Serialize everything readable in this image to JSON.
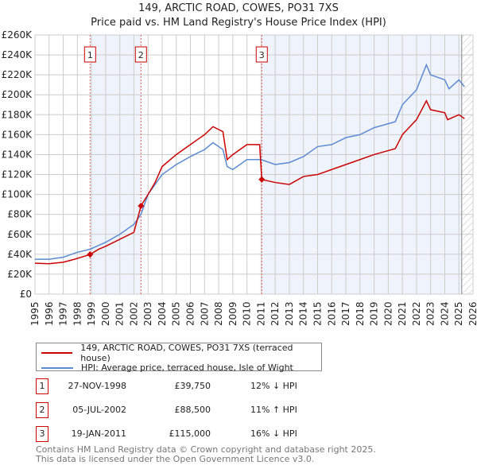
{
  "chart_data": {
    "type": "line",
    "title": "149, ARCTIC ROAD, COWES, PO31 7XS",
    "subtitle": "Price paid vs. HM Land Registry's House Price Index (HPI)",
    "xlim": [
      1995,
      2026
    ],
    "ylim": [
      0,
      260000
    ],
    "yticks": [
      "£0",
      "£20K",
      "£40K",
      "£60K",
      "£80K",
      "£100K",
      "£120K",
      "£140K",
      "£160K",
      "£180K",
      "£200K",
      "£220K",
      "£240K",
      "£260K"
    ],
    "xticks": [
      "1995",
      "1996",
      "1997",
      "1998",
      "1999",
      "2000",
      "2001",
      "2002",
      "2003",
      "2004",
      "2005",
      "2006",
      "2007",
      "2008",
      "2009",
      "2010",
      "2011",
      "2012",
      "2013",
      "2014",
      "2015",
      "2016",
      "2017",
      "2018",
      "2019",
      "2020",
      "2021",
      "2022",
      "2023",
      "2024",
      "2025",
      "2026"
    ],
    "grid": true,
    "series": [
      {
        "name": "149, ARCTIC ROAD, COWES, PO31 7XS (terraced house)",
        "color": "#cc0000",
        "x": [
          1995,
          1996,
          1997,
          1997.8,
          1998.9,
          1999.5,
          2000,
          2001,
          2002,
          2002.5,
          2003,
          2003.5,
          2004,
          2005,
          2006,
          2007,
          2007.6,
          2008.3,
          2008.6,
          2009,
          2010,
          2010.9,
          2011.05,
          2012,
          2013,
          2014,
          2015,
          2016,
          2017,
          2018,
          2019,
          2020,
          2020.5,
          2021,
          2022,
          2022.7,
          2023,
          2024,
          2024.2,
          2025,
          2025.4
        ],
        "y": [
          31000,
          30500,
          32000,
          35000,
          39750,
          45000,
          48000,
          55000,
          62000,
          88500,
          100000,
          112000,
          128000,
          140000,
          150000,
          160000,
          168000,
          163000,
          135000,
          140000,
          150000,
          150000,
          115000,
          112000,
          110000,
          118000,
          120000,
          125000,
          130000,
          135000,
          140000,
          144000,
          146000,
          160000,
          175000,
          194000,
          185000,
          182000,
          175000,
          180000,
          176000
        ]
      },
      {
        "name": "HPI: Average price, terraced house, Isle of Wight",
        "color": "#5b8bd0",
        "x": [
          1995,
          1996,
          1997,
          1998,
          1998.9,
          2000,
          2001,
          2002,
          2002.5,
          2003,
          2004,
          2005,
          2006,
          2007,
          2007.6,
          2008.3,
          2008.6,
          2009,
          2010,
          2011,
          2012,
          2013,
          2014,
          2015,
          2016,
          2017,
          2018,
          2019,
          2020,
          2020.5,
          2021,
          2022,
          2022.7,
          2023,
          2024,
          2024.3,
          2025,
          2025.4
        ],
        "y": [
          35000,
          35000,
          37000,
          42000,
          45000,
          52000,
          60000,
          70000,
          80000,
          100000,
          120000,
          130000,
          138000,
          145000,
          152000,
          145000,
          128000,
          125000,
          135000,
          135000,
          130000,
          132000,
          138000,
          148000,
          150000,
          157000,
          160000,
          167000,
          171000,
          173000,
          190000,
          205000,
          230000,
          220000,
          215000,
          206000,
          215000,
          208000
        ]
      }
    ],
    "sales": [
      {
        "label": "1",
        "x": 1998.9,
        "y": 39750
      },
      {
        "label": "2",
        "x": 2002.5,
        "y": 88500
      },
      {
        "label": "3",
        "x": 2011.05,
        "y": 115000
      }
    ],
    "shaded_ranges": [
      [
        1998.9,
        2002.5
      ],
      [
        2011.05,
        2025.2
      ]
    ],
    "hatched_from": 2025.2,
    "legend": "below"
  },
  "table": [
    {
      "n": "1",
      "date": "27-NOV-1998",
      "price": "£39,750",
      "hpi": "12% ↓ HPI"
    },
    {
      "n": "2",
      "date": "05-JUL-2002",
      "price": "£88,500",
      "hpi": "11% ↑ HPI"
    },
    {
      "n": "3",
      "date": "19-JAN-2011",
      "price": "£115,000",
      "hpi": "16% ↓ HPI"
    }
  ],
  "footer": [
    "Contains HM Land Registry data © Crown copyright and database right 2025.",
    "This data is licensed under the Open Government Licence v3.0."
  ]
}
